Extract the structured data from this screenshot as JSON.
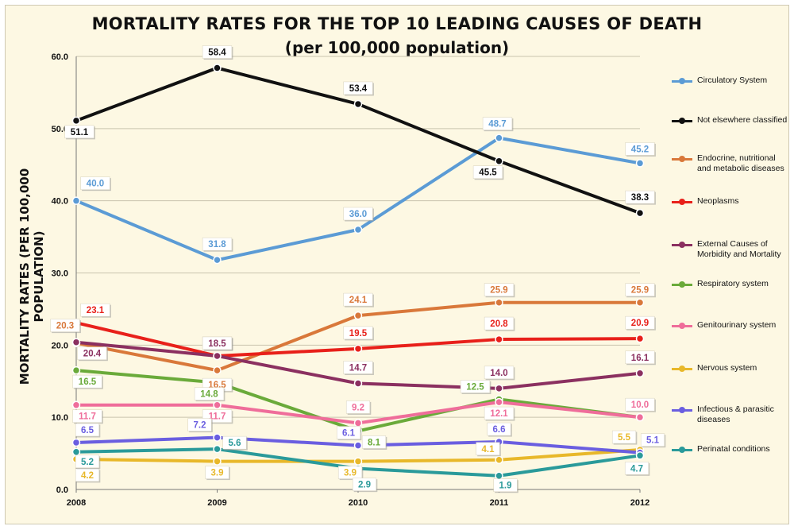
{
  "chart_data": {
    "type": "line",
    "title": "MORTALITY RATES FOR THE TOP 10 LEADING CAUSES OF DEATH",
    "subtitle": "(per 100,000 population)",
    "xlabel": "",
    "ylabel": "MORTALITY RATES (PER 100,000 POPULATION)",
    "x": [
      "2008",
      "2009",
      "2010",
      "2011",
      "2012"
    ],
    "ylim": [
      0,
      60
    ],
    "yticks": [
      "0.0",
      "10.0",
      "20.0",
      "30.0",
      "40.0",
      "50.0",
      "60.0"
    ],
    "grid": true,
    "legend_position": "right",
    "series": [
      {
        "name": "Circulatory System",
        "color": "#5b9bd5",
        "values": [
          40.0,
          31.8,
          36.0,
          48.7,
          45.2
        ],
        "labels": [
          "40.0",
          "31.8",
          "36.0",
          "48.7",
          "45.2"
        ]
      },
      {
        "name": "Not elsewhere classified",
        "color": "#111111",
        "values": [
          51.1,
          58.4,
          53.4,
          45.5,
          38.3
        ],
        "labels": [
          "51.1",
          "58.4",
          "53.4",
          "45.5",
          "38.3"
        ]
      },
      {
        "name": "Endocrine, nutritional and metabolic diseases",
        "color": "#d9783a",
        "values": [
          20.3,
          16.5,
          24.1,
          25.9,
          25.9
        ],
        "labels": [
          "20.3",
          "16.5",
          "24.1",
          "25.9",
          "25.9"
        ]
      },
      {
        "name": "Neoplasms",
        "color": "#e8201a",
        "values": [
          23.1,
          18.5,
          19.5,
          20.8,
          20.9
        ],
        "labels": [
          "23.1",
          "18.5",
          "19.5",
          "20.8",
          "20.9"
        ]
      },
      {
        "name": "External Causes of Morbidity and Mortality",
        "color": "#8b3060",
        "values": [
          20.4,
          18.5,
          14.7,
          14.0,
          16.1
        ],
        "labels": [
          "20.4",
          "18.5",
          "14.7",
          "14.0",
          "16.1"
        ]
      },
      {
        "name": "Respiratory system",
        "color": "#6aaa3a",
        "values": [
          16.5,
          14.8,
          8.1,
          12.5,
          10.0
        ],
        "labels": [
          "16.5",
          "14.8",
          "8.1",
          "12.5",
          ""
        ]
      },
      {
        "name": "Genitourinary system",
        "color": "#ef6d9a",
        "values": [
          11.7,
          11.7,
          9.2,
          12.1,
          10.0
        ],
        "labels": [
          "11.7",
          "11.7",
          "9.2",
          "12.1",
          "10.0"
        ]
      },
      {
        "name": "Nervous system",
        "color": "#e8b82a",
        "values": [
          4.2,
          3.9,
          3.9,
          4.1,
          5.5
        ],
        "labels": [
          "4.2",
          "3.9",
          "3.9",
          "4.1",
          "5.5"
        ]
      },
      {
        "name": "Infectious & parasitic diseases",
        "color": "#6a5ee0",
        "values": [
          6.5,
          7.2,
          6.1,
          6.6,
          5.1
        ],
        "labels": [
          "6.5",
          "7.2",
          "6.1",
          "6.6",
          "5.1"
        ]
      },
      {
        "name": "Perinatal conditions",
        "color": "#2a9a9a",
        "values": [
          5.2,
          5.6,
          2.9,
          1.9,
          4.7
        ],
        "labels": [
          "5.2",
          "5.6",
          "2.9",
          "1.9",
          "4.7"
        ]
      }
    ]
  }
}
